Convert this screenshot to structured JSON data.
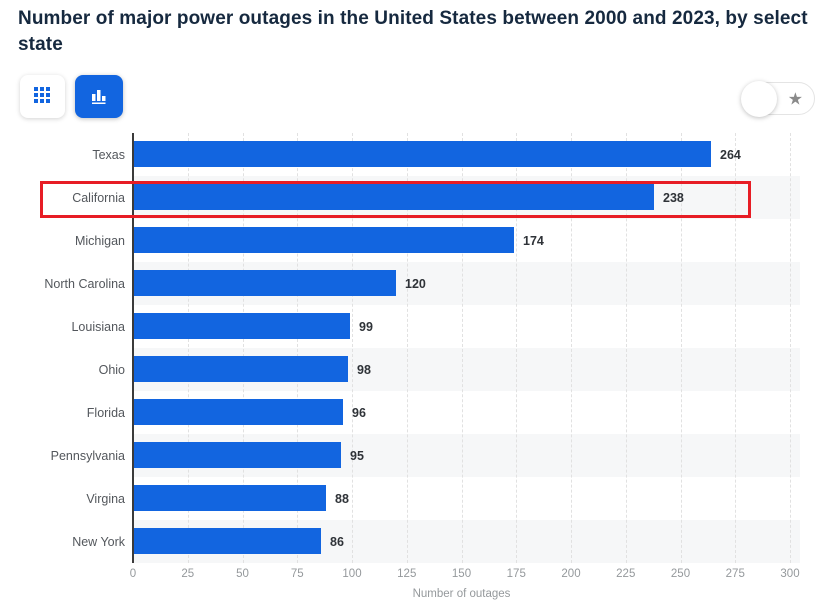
{
  "header": {
    "title": "Number of major power outages in the United States between 2000 and 2023, by select state"
  },
  "toolbar": {
    "table_view_button": {
      "icon": "grid-icon",
      "active": false
    },
    "chart_view_button": {
      "icon": "bar-chart-icon",
      "active": true
    }
  },
  "favorite_toggle": {
    "icon": "star-icon",
    "glyph": "★",
    "state": "off"
  },
  "colors": {
    "bar": "#1265e0",
    "accent_button": "#1265e0",
    "highlight_box": "#e71d25",
    "row_stripe": "#f6f7f8",
    "title_text": "#16293f"
  },
  "chart_data": {
    "type": "bar",
    "orientation": "horizontal",
    "title": "Number of major power outages in the United States between 2000 and 2023, by select state",
    "categories": [
      "Texas",
      "California",
      "Michigan",
      "North Carolina",
      "Louisiana",
      "Ohio",
      "Florida",
      "Pennsylvania",
      "Virgina",
      "New York"
    ],
    "values": [
      264,
      238,
      174,
      120,
      99,
      98,
      96,
      95,
      88,
      86
    ],
    "xlabel": "Number of outages",
    "ylabel": "",
    "x_ticks": [
      0,
      25,
      50,
      75,
      100,
      125,
      150,
      175,
      200,
      225,
      250,
      275,
      300
    ],
    "xlim": [
      0,
      300
    ],
    "grid": "vertical-dashed",
    "legend": "none",
    "highlighted_category": "California"
  }
}
